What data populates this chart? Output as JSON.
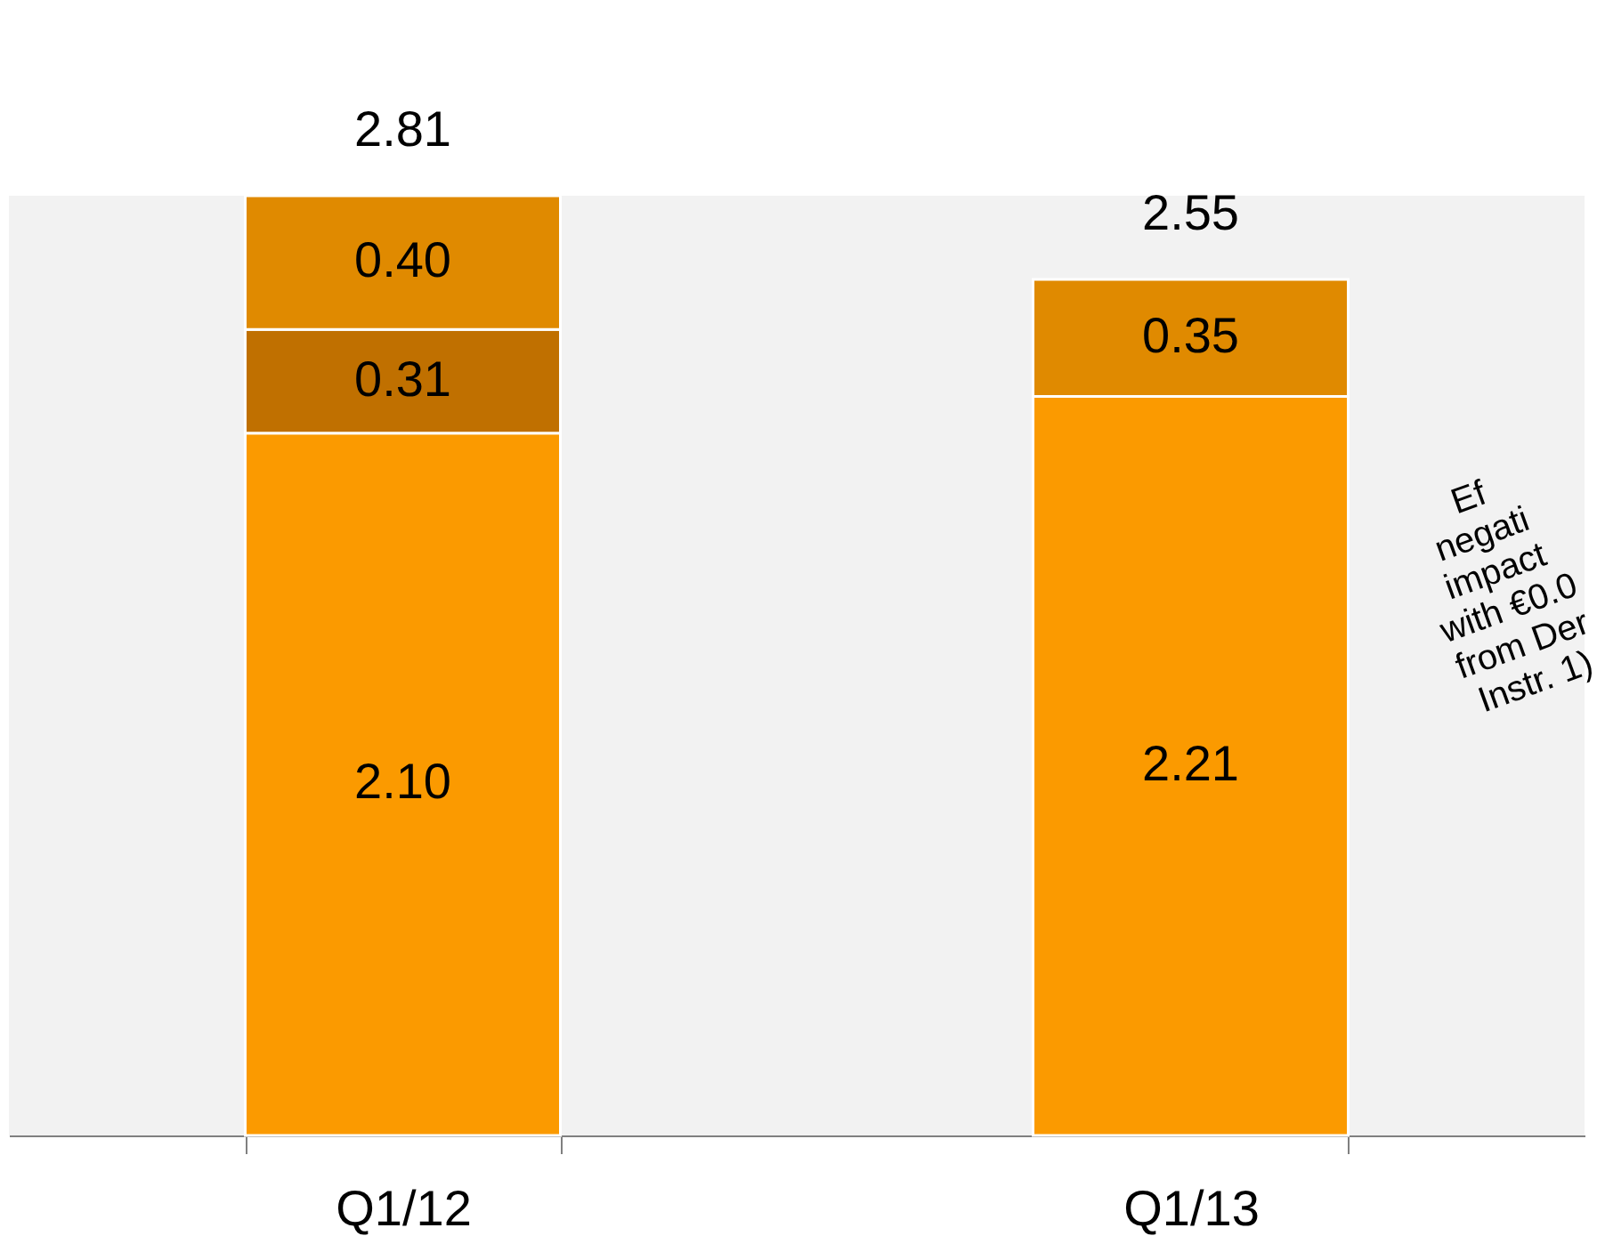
{
  "chart_data": {
    "type": "bar",
    "stacked": true,
    "categories": [
      "Q1/12",
      "Q1/13"
    ],
    "series": [
      {
        "color": "#fb9a00",
        "values": [
          2.1,
          2.21
        ],
        "value_labels": [
          "2.10",
          "2.21"
        ]
      },
      {
        "color": "#c07000",
        "values": [
          0.31,
          null
        ],
        "value_labels": [
          "0.31",
          null
        ]
      },
      {
        "color": "#e08a00",
        "values": [
          0.4,
          0.35
        ],
        "value_labels": [
          "0.40",
          "0.35"
        ]
      }
    ],
    "totals": [
      "2.81",
      "2.55"
    ],
    "grid": false,
    "tick_labels": "x",
    "annotations": [
      "Ef\nnegati\nimpact\nwith €0.0\nfrom Der\nInstr. 1)"
    ]
  }
}
